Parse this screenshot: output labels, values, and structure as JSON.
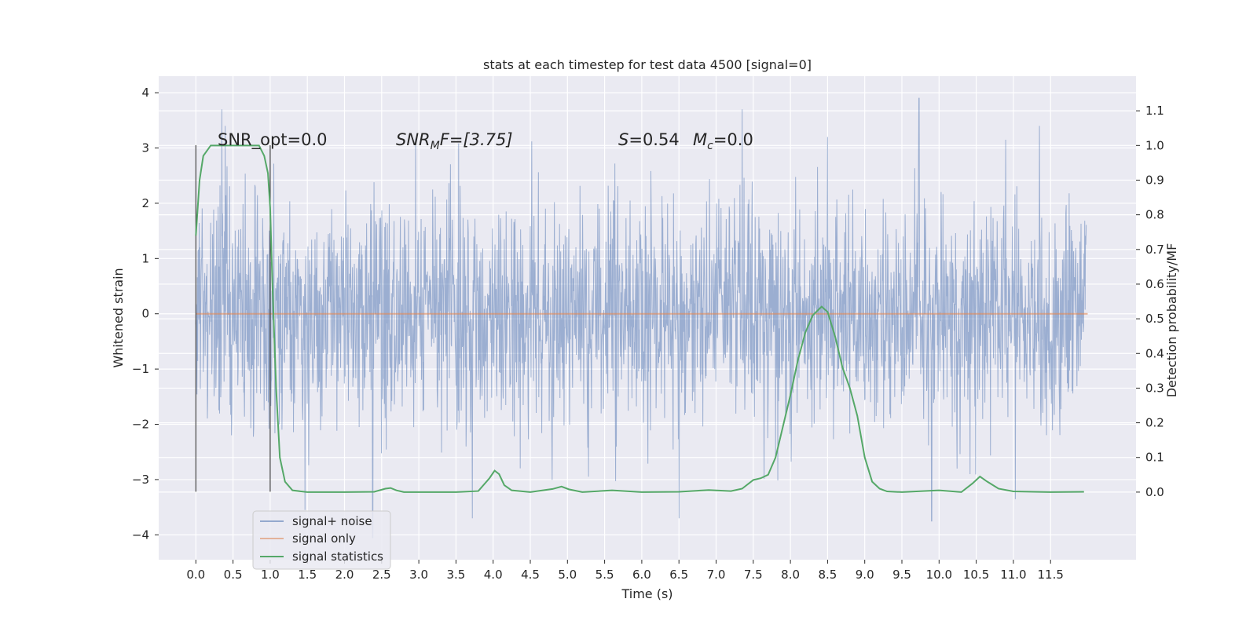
{
  "chart_data": {
    "type": "line",
    "title": "stats at each timestep for test data 4500 [signal=0]",
    "xlabel": "Time (s)",
    "ylabel_left": "Whitened strain",
    "ylabel_right": "Detection probability/MF",
    "xlim": [
      -0.5,
      12.65
    ],
    "ylim_left": [
      -4.45,
      4.3
    ],
    "ylim_right": [
      -0.195,
      1.2
    ],
    "x_ticks": [
      "0.0",
      "0.5",
      "1.0",
      "1.5",
      "2.0",
      "2.5",
      "3.0",
      "3.5",
      "4.0",
      "4.5",
      "5.0",
      "5.5",
      "6.0",
      "6.5",
      "7.0",
      "7.5",
      "8.0",
      "8.5",
      "9.0",
      "9.5",
      "10.0",
      "10.5",
      "11.0",
      "11.5"
    ],
    "y_ticks_left": [
      "4",
      "3",
      "2",
      "1",
      "0",
      "−1",
      "−2",
      "−3",
      "−4"
    ],
    "y_ticks_right": [
      "1.1",
      "1.0",
      "0.9",
      "0.8",
      "0.7",
      "0.6",
      "0.5",
      "0.4",
      "0.3",
      "0.2",
      "0.1",
      "0.0"
    ],
    "grid": true,
    "legend_position": "lower-left",
    "annotations": {
      "snr_opt": "SNR_opt=0.0",
      "snr_mf_italic": "SNR",
      "snr_mf_sub": "M",
      "snr_mf_rest": "F=[3.75]",
      "s_italic": "S",
      "s_value": "=0.54",
      "mc_italic": "M",
      "mc_sub": "c",
      "mc_value": "=0.0"
    },
    "window_markers": [
      0.0,
      1.0
    ],
    "series": [
      {
        "name": "signal+ noise",
        "axis": "left",
        "color": "#4c72b0",
        "style": "dense noise trace, approx. mean 0, std 1, time 0 to 12 s",
        "envelope_peaks": [
          [
            0.35,
            3.7
          ],
          [
            1.47,
            -3.55
          ],
          [
            2.38,
            -4.05
          ],
          [
            3.72,
            -3.7
          ],
          [
            7.35,
            3.7
          ],
          [
            8.5,
            3.2
          ],
          [
            9.73,
            3.9
          ],
          [
            9.9,
            -3.75
          ],
          [
            11.35,
            3.4
          ],
          [
            6.5,
            -3.7
          ]
        ]
      },
      {
        "name": "signal only",
        "axis": "left",
        "color": "#dd8452",
        "x": [
          0,
          12
        ],
        "y": [
          0,
          0
        ]
      },
      {
        "name": "signal statistics",
        "axis": "right",
        "color": "#55a868",
        "x": [
          0.0,
          0.05,
          0.1,
          0.2,
          0.3,
          0.5,
          0.7,
          0.85,
          0.92,
          0.97,
          1.0,
          1.03,
          1.08,
          1.13,
          1.2,
          1.3,
          1.5,
          2.0,
          2.4,
          2.55,
          2.62,
          2.7,
          2.8,
          3.0,
          3.5,
          3.8,
          3.95,
          4.02,
          4.08,
          4.15,
          4.25,
          4.5,
          4.8,
          4.92,
          5.02,
          5.2,
          5.6,
          6.0,
          6.5,
          6.9,
          7.2,
          7.35,
          7.5,
          7.6,
          7.7,
          7.8,
          7.9,
          8.0,
          8.1,
          8.2,
          8.3,
          8.42,
          8.5,
          8.6,
          8.7,
          8.8,
          8.9,
          9.0,
          9.1,
          9.2,
          9.3,
          9.5,
          10.0,
          10.3,
          10.45,
          10.55,
          10.65,
          10.8,
          11.0,
          11.5,
          11.95
        ],
        "y": [
          0.74,
          0.9,
          0.97,
          1.0,
          1.0,
          1.0,
          1.0,
          1.0,
          0.97,
          0.92,
          0.82,
          0.6,
          0.3,
          0.1,
          0.03,
          0.005,
          0.0,
          0.0,
          0.001,
          0.01,
          0.012,
          0.005,
          0.0,
          0.0,
          0.0,
          0.003,
          0.04,
          0.062,
          0.052,
          0.02,
          0.005,
          0.0,
          0.009,
          0.016,
          0.008,
          0.0,
          0.005,
          0.0,
          0.001,
          0.006,
          0.003,
          0.01,
          0.035,
          0.04,
          0.05,
          0.1,
          0.19,
          0.28,
          0.38,
          0.46,
          0.51,
          0.535,
          0.52,
          0.45,
          0.36,
          0.3,
          0.22,
          0.1,
          0.03,
          0.01,
          0.002,
          0.0,
          0.005,
          0.0,
          0.025,
          0.045,
          0.03,
          0.01,
          0.002,
          0.0,
          0.001
        ]
      }
    ]
  }
}
